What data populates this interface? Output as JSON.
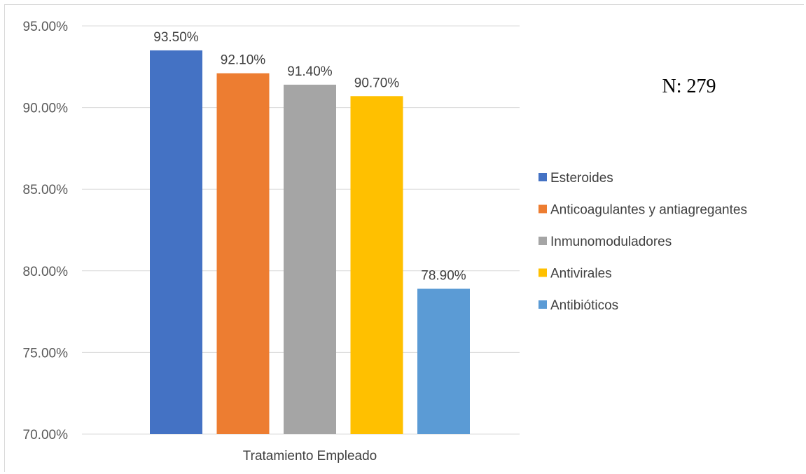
{
  "chart_data": {
    "type": "bar",
    "categories": [
      "Tratamiento Empleado"
    ],
    "series": [
      {
        "name": "Esteroides",
        "values": [
          93.5
        ],
        "color": "#4472C4",
        "label": "93.50%"
      },
      {
        "name": "Anticoagulantes y antiagregantes",
        "values": [
          92.1
        ],
        "color": "#ED7D31",
        "label": "92.10%"
      },
      {
        "name": "Inmunomoduladores",
        "values": [
          91.4
        ],
        "color": "#A5A5A5",
        "label": "91.40%"
      },
      {
        "name": "Antivirales",
        "values": [
          90.7
        ],
        "color": "#FFC000",
        "label": "90.70%"
      },
      {
        "name": "Antibióticos",
        "values": [
          78.9
        ],
        "color": "#5B9BD5",
        "label": "78.90%"
      }
    ],
    "ylim": [
      70,
      95
    ],
    "yticks": [
      "70.00%",
      "75.00%",
      "80.00%",
      "85.00%",
      "90.00%",
      "95.00%"
    ],
    "ytick_values": [
      70,
      75,
      80,
      85,
      90,
      95
    ],
    "grid": true,
    "legend_position": "right"
  },
  "annotation": "N: 279"
}
